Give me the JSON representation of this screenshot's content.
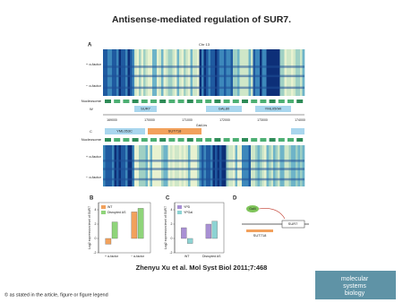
{
  "title": "Antisense-mediated regulation of SUR7.",
  "citation": "Zhenyu Xu et al. Mol Syst Biol 2011;7:468",
  "footer": "© as stated in the article, figure or figure legend",
  "logo": [
    "molecular",
    "systems",
    "biology"
  ],
  "figure": {
    "panel_a": {
      "label": "A",
      "chromosome": "Chr 13",
      "nucleosome": "Nucleosome",
      "strand_w": "W",
      "strand_c": "C",
      "row_labels": [
        "+ α-factor",
        "− α-factor"
      ],
      "genes_w": [
        "SUR7",
        "GAL80",
        "YML050W"
      ],
      "genes_c": [
        "YML053C",
        "SUT718"
      ],
      "gal4_site": "Gal4-bs",
      "coordinates": [
        "169000",
        "170000",
        "171000",
        "172000",
        "173000",
        "174000"
      ]
    },
    "panel_b": {
      "label": "B",
      "y_label": "Log2 expression level of SUR7",
      "categories": [
        "+ α-factor",
        "− α-factor"
      ],
      "series": [
        {
          "name": "WT",
          "color": "#f2a15c",
          "values": [
            -0.8,
            3.7
          ]
        },
        {
          "name": "Disrupted AS",
          "color": "#8fd47a",
          "values": [
            2.3,
            4.2
          ]
        }
      ],
      "ylim": [
        -2,
        5
      ],
      "yticks": [
        -2,
        0,
        2,
        4
      ]
    },
    "panel_c": {
      "label": "C",
      "y_label": "Log2 expression level of SUR7",
      "categories": [
        "WT",
        "Disrupted AS"
      ],
      "series": [
        {
          "name": "YPD",
          "color": "#a890d4",
          "values": [
            1.5,
            2.0
          ]
        },
        {
          "name": "YPGal",
          "color": "#8dd3d3",
          "values": [
            -0.7,
            2.4
          ]
        }
      ],
      "ylim": [
        -2,
        5
      ],
      "yticks": [
        -2,
        0,
        2,
        4
      ]
    },
    "panel_d": {
      "label": "D",
      "protein": "Gal4",
      "gene": "SUR7",
      "antisense": "SUT718"
    }
  }
}
